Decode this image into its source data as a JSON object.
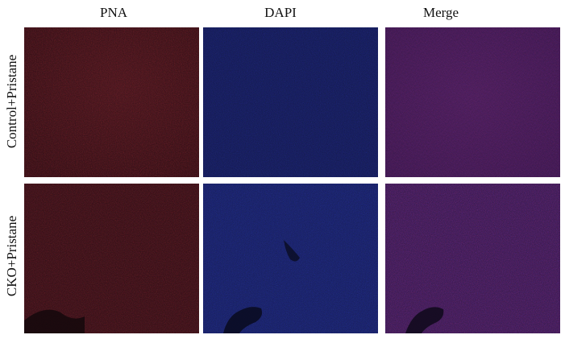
{
  "figure": {
    "columns": [
      {
        "label": "PNA"
      },
      {
        "label": "DAPI"
      },
      {
        "label": "Merge"
      }
    ],
    "rows": [
      {
        "label": "Control+Pristane"
      },
      {
        "label": "CKO+Pristane"
      }
    ],
    "channel_colors": {
      "pna": "#3a1015",
      "dapi": "#131a52",
      "merge": "#321a48",
      "background_dark": "#14080c"
    }
  }
}
